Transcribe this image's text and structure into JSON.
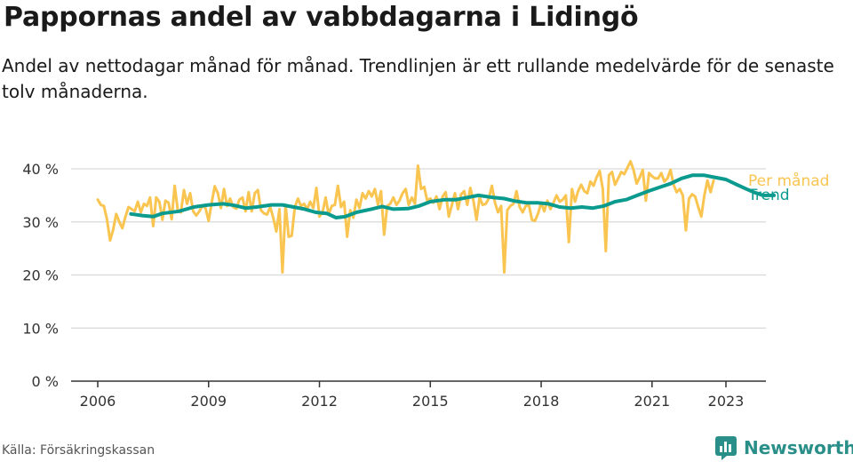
{
  "title": "Pappornas andel av vabbdagarna i Lidingö",
  "subtitle": "Andel av nettodagar månad för månad. Trendlinjen är ett rullande medelvärde för de senaste tolv månaderna.",
  "source": "Källa: Försäkringskassan",
  "brand": "Newsworthy",
  "colors": {
    "monthly": "#F9C550",
    "trend": "#0A9A8E",
    "grid": "#d9d9d9",
    "axis": "#333333",
    "brand": "#2a8f88"
  },
  "chart_data": {
    "type": "line",
    "xlabel": "",
    "ylabel": "",
    "ylim": [
      0,
      40
    ],
    "xlim": [
      2006,
      2023.5
    ],
    "y_ticks": [
      0,
      10,
      20,
      30,
      40
    ],
    "y_tick_labels": [
      "0 %",
      "10 %",
      "20 %",
      "30 %",
      "40 %"
    ],
    "x_ticks": [
      2006,
      2009,
      2012,
      2015,
      2018,
      2021,
      2023
    ],
    "x_tick_labels": [
      "2006",
      "2009",
      "2012",
      "2015",
      "2018",
      "2021",
      "2023"
    ],
    "grid": true,
    "legend": "inline-right",
    "series": [
      {
        "name": "Per månad",
        "color": "#F9C550",
        "x_start": 2006.0,
        "step": 0.0833333,
        "values": [
          34.2,
          33.2,
          33.0,
          30.5,
          26.5,
          28.5,
          31.5,
          30.0,
          28.8,
          31.0,
          32.8,
          32.4,
          32.0,
          33.8,
          31.8,
          33.4,
          33.0,
          34.6,
          29.2,
          34.6,
          33.8,
          30.4,
          34.0,
          33.6,
          30.5,
          36.8,
          32.2,
          31.8,
          36.0,
          33.4,
          35.4,
          32.0,
          31.2,
          32.0,
          33.0,
          32.6,
          30.2,
          33.6,
          36.7,
          35.4,
          32.6,
          36.2,
          33.0,
          34.4,
          32.8,
          32.5,
          34.2,
          34.6,
          32.0,
          35.6,
          32.0,
          35.4,
          36.0,
          32.2,
          31.6,
          31.4,
          32.8,
          30.8,
          28.2,
          32.4,
          20.5,
          33.2,
          27.2,
          27.4,
          32.8,
          34.4,
          33.0,
          33.4,
          32.4,
          33.8,
          32.6,
          36.4,
          31.0,
          31.8,
          34.6,
          31.4,
          33.0,
          33.2,
          36.8,
          32.8,
          33.8,
          27.2,
          32.2,
          30.8,
          34.2,
          32.6,
          35.4,
          34.4,
          35.8,
          34.8,
          36.2,
          33.2,
          35.8,
          27.6,
          33.0,
          33.4,
          34.6,
          33.2,
          34.0,
          35.4,
          36.2,
          33.2,
          34.6,
          33.4,
          40.6,
          36.2,
          36.6,
          34.0,
          34.4,
          33.6,
          34.8,
          32.4,
          34.8,
          35.6,
          31.0,
          33.2,
          35.4,
          32.4,
          35.2,
          35.8,
          33.2,
          36.4,
          34.0,
          30.4,
          34.6,
          33.2,
          33.4,
          34.4,
          36.8,
          33.6,
          31.8,
          33.0,
          20.5,
          32.2,
          33.0,
          33.4,
          35.8,
          32.8,
          31.8,
          33.0,
          33.2,
          30.4,
          30.2,
          31.6,
          33.6,
          32.0,
          34.0,
          32.4,
          33.6,
          35.0,
          33.8,
          34.2,
          35.0,
          26.2,
          36.2,
          33.8,
          35.8,
          37.0,
          35.8,
          35.4,
          37.6,
          36.8,
          38.4,
          39.6,
          36.2,
          24.5,
          38.8,
          39.4,
          37.0,
          38.2,
          39.4,
          39.0,
          40.2,
          41.4,
          39.8,
          37.2,
          38.4,
          39.8,
          34.0,
          39.2,
          38.6,
          38.2,
          38.2,
          39.2,
          37.6,
          38.2,
          39.8,
          37.0,
          35.6,
          36.2,
          35.0,
          28.4,
          34.4,
          35.2,
          34.8,
          32.8,
          31.0,
          35.0,
          37.8,
          35.6,
          37.8
        ]
      },
      {
        "name": "Trend",
        "color": "#0A9A8E",
        "points": [
          [
            2006.9,
            31.5
          ],
          [
            2007.2,
            31.2
          ],
          [
            2007.5,
            31.0
          ],
          [
            2007.75,
            31.6
          ],
          [
            2008.2,
            32.0
          ],
          [
            2008.6,
            32.8
          ],
          [
            2009.0,
            33.2
          ],
          [
            2009.4,
            33.4
          ],
          [
            2009.7,
            33.1
          ],
          [
            2010.0,
            32.6
          ],
          [
            2010.3,
            32.8
          ],
          [
            2010.7,
            33.2
          ],
          [
            2011.0,
            33.2
          ],
          [
            2011.3,
            32.8
          ],
          [
            2011.6,
            32.4
          ],
          [
            2011.9,
            31.8
          ],
          [
            2012.2,
            31.6
          ],
          [
            2012.45,
            30.8
          ],
          [
            2012.7,
            31.0
          ],
          [
            2013.0,
            31.8
          ],
          [
            2013.4,
            32.4
          ],
          [
            2013.7,
            32.9
          ],
          [
            2014.0,
            32.4
          ],
          [
            2014.4,
            32.5
          ],
          [
            2014.7,
            33.0
          ],
          [
            2015.0,
            33.8
          ],
          [
            2015.4,
            34.2
          ],
          [
            2015.7,
            34.2
          ],
          [
            2016.0,
            34.6
          ],
          [
            2016.3,
            35.0
          ],
          [
            2016.7,
            34.6
          ],
          [
            2017.0,
            34.4
          ],
          [
            2017.3,
            33.9
          ],
          [
            2017.6,
            33.6
          ],
          [
            2017.9,
            33.6
          ],
          [
            2018.2,
            33.4
          ],
          [
            2018.5,
            32.8
          ],
          [
            2018.8,
            32.6
          ],
          [
            2019.1,
            32.8
          ],
          [
            2019.4,
            32.6
          ],
          [
            2019.7,
            33.0
          ],
          [
            2020.0,
            33.8
          ],
          [
            2020.3,
            34.2
          ],
          [
            2020.6,
            35.0
          ],
          [
            2020.9,
            35.8
          ],
          [
            2021.2,
            36.5
          ],
          [
            2021.5,
            37.2
          ],
          [
            2021.8,
            38.2
          ],
          [
            2022.1,
            38.8
          ],
          [
            2022.4,
            38.8
          ],
          [
            2022.7,
            38.4
          ],
          [
            2023.0,
            38.0
          ],
          [
            2023.3,
            37.0
          ],
          [
            2023.55,
            36.2
          ],
          [
            2023.75,
            35.6
          ],
          [
            2024.0,
            35.0
          ],
          [
            2024.3,
            35.0
          ]
        ]
      }
    ]
  }
}
